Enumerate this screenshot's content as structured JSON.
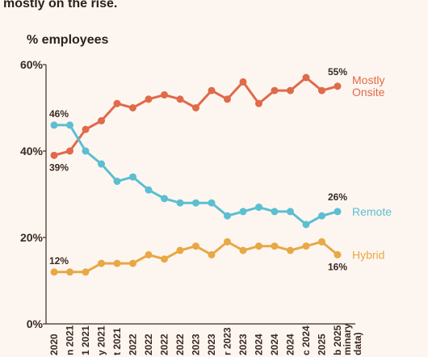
{
  "subtitle": "mostly on the rise.",
  "chart_data": {
    "type": "line",
    "ylabel": "% employees",
    "ylim": [
      0,
      60
    ],
    "yticks": [
      "0%",
      "20%",
      "40%",
      "60%"
    ],
    "ytick_values": [
      0,
      20,
      40,
      60
    ],
    "categories": [
      "2020",
      "n 2021",
      "1 2021",
      "y 2021",
      "t 2021",
      "2022",
      "2022",
      "2022",
      "2022",
      "2023",
      "2023",
      "r 2023",
      "2023",
      "2024",
      "2024",
      "2024",
      "c 2024",
      "2025",
      "b 2025"
    ],
    "footnote_lines": [
      "minary",
      "data)"
    ],
    "series": [
      {
        "name": "Mostly Onsite",
        "name_lines": [
          "Mostly",
          "Onsite"
        ],
        "color": "#e06a4a",
        "values": [
          39,
          40,
          45,
          47,
          51,
          50,
          52,
          53,
          52,
          50,
          54,
          52,
          56,
          51,
          54,
          54,
          57,
          54,
          55
        ]
      },
      {
        "name": "Remote",
        "name_lines": [
          "Remote"
        ],
        "color": "#5bbfd1",
        "values": [
          46,
          46,
          40,
          37,
          33,
          34,
          31,
          29,
          28,
          28,
          28,
          25,
          26,
          27,
          26,
          26,
          23,
          25,
          26
        ]
      },
      {
        "name": "Hybrid",
        "name_lines": [
          "Hybrid"
        ],
        "color": "#e8a845",
        "values": [
          12,
          12,
          12,
          14,
          14,
          14,
          16,
          15,
          17,
          18,
          16,
          19,
          17,
          18,
          18,
          17,
          18,
          19,
          16
        ]
      }
    ],
    "annotations": [
      {
        "text": "46%",
        "series": 1,
        "index": 0
      },
      {
        "text": "39%",
        "series": 0,
        "index": 0
      },
      {
        "text": "12%",
        "series": 2,
        "index": 0
      },
      {
        "text": "55%",
        "series": 0,
        "index": 18
      },
      {
        "text": "26%",
        "series": 1,
        "index": 18
      },
      {
        "text": "16%",
        "series": 2,
        "index": 18
      }
    ]
  }
}
